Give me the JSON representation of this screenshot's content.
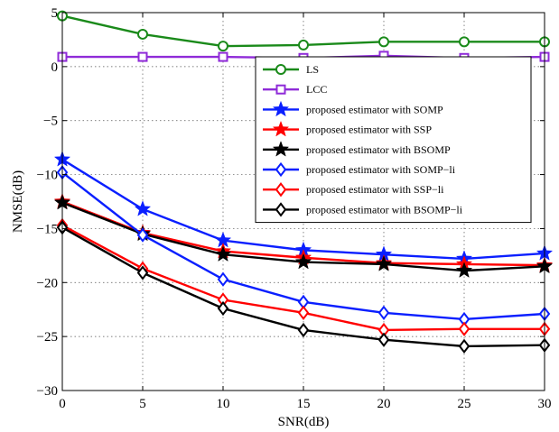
{
  "chart_data": {
    "type": "line",
    "title": "",
    "xlabel": "SNR(dB)",
    "ylabel": "NMSE(dB)",
    "xlim": [
      0,
      30
    ],
    "ylim": [
      -30,
      5
    ],
    "xticks": [
      "0",
      "5",
      "10",
      "15",
      "20",
      "25",
      "30"
    ],
    "yticks": [
      "5",
      "0",
      "−5",
      "−10",
      "−15",
      "−20",
      "−25",
      "−30"
    ],
    "grid": true,
    "legend_position": "upper-right",
    "x": [
      0,
      5,
      10,
      15,
      20,
      25,
      30
    ],
    "series": [
      {
        "name": "LS",
        "color": "#1a8a1a",
        "marker": "circle",
        "values": [
          4.7,
          3.0,
          1.9,
          2.0,
          2.3,
          2.3,
          2.3
        ]
      },
      {
        "name": "LCC",
        "color": "#8f2bd8",
        "marker": "square",
        "values": [
          0.9,
          0.9,
          0.9,
          0.8,
          1.0,
          0.8,
          0.9
        ]
      },
      {
        "name": "proposed estimator with SOMP",
        "color": "#0a1fff",
        "marker": "star",
        "values": [
          -8.6,
          -13.2,
          -16.1,
          -17.0,
          -17.4,
          -17.8,
          -17.3
        ]
      },
      {
        "name": "proposed estimator with SSP",
        "color": "#ff0000",
        "marker": "star",
        "values": [
          -12.5,
          -15.4,
          -17.1,
          -17.7,
          -18.2,
          -18.3,
          -18.4
        ]
      },
      {
        "name": "proposed estimator with BSOMP",
        "color": "#000000",
        "marker": "star",
        "values": [
          -12.6,
          -15.5,
          -17.4,
          -18.1,
          -18.3,
          -18.9,
          -18.5
        ]
      },
      {
        "name": "proposed estimator with SOMP−li",
        "color": "#0a1fff",
        "marker": "diamond",
        "values": [
          -9.8,
          -15.6,
          -19.7,
          -21.8,
          -22.8,
          -23.4,
          -22.9
        ]
      },
      {
        "name": "proposed estimator with SSP−li",
        "color": "#ff0000",
        "marker": "diamond",
        "values": [
          -14.7,
          -18.7,
          -21.6,
          -22.8,
          -24.4,
          -24.3,
          -24.3
        ]
      },
      {
        "name": "proposed estimator with BSOMP−li",
        "color": "#000000",
        "marker": "diamond",
        "values": [
          -14.9,
          -19.1,
          -22.4,
          -24.4,
          -25.3,
          -25.9,
          -25.8
        ]
      }
    ]
  }
}
